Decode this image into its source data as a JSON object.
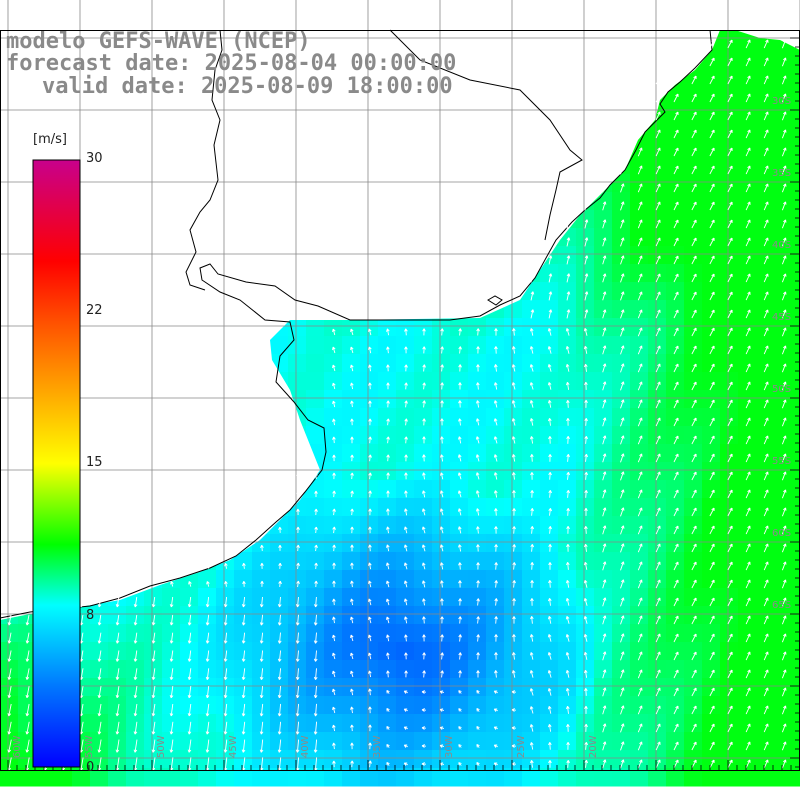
{
  "header": {
    "line1": "modelo GEFS-WAVE (NCEP)",
    "line2": "forecast date: 2025-08-04 00:00:00",
    "line3": "valid date: 2025-08-09 18:00:00"
  },
  "colorbar": {
    "unit": "[m/s]",
    "labels": [
      "30",
      "22",
      "15",
      "8",
      "0"
    ],
    "stops": [
      {
        "v": 0,
        "color": "#0000ff"
      },
      {
        "v": 4,
        "color": "#0078ff"
      },
      {
        "v": 8,
        "color": "#00ffff"
      },
      {
        "v": 11,
        "color": "#00ff00"
      },
      {
        "v": 15,
        "color": "#ffff00"
      },
      {
        "v": 22,
        "color": "#ff5000"
      },
      {
        "v": 25,
        "color": "#ff0000"
      },
      {
        "v": 30,
        "color": "#c8008c"
      }
    ],
    "min": 0,
    "max": 30
  },
  "map": {
    "lon_labels": [
      "60W",
      "55W",
      "50W",
      "45W",
      "40W",
      "35W",
      "30W",
      "25W",
      "20W"
    ],
    "lat_labels": [
      "30S",
      "35S",
      "40S",
      "45S",
      "50S",
      "55S",
      "60S",
      "65S"
    ],
    "land_color": "#ffffff",
    "grid_color": "#888888",
    "coast_color": "#000000"
  }
}
